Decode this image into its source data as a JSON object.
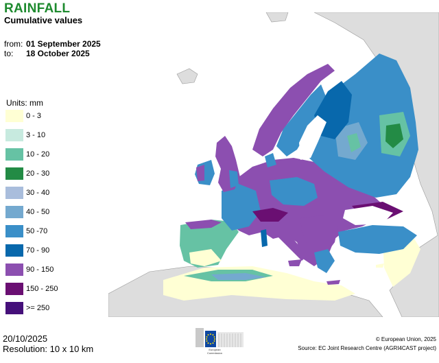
{
  "header": {
    "title": "RAINFALL",
    "subtitle": "Cumulative values"
  },
  "period": {
    "from_label": "from:",
    "from_value": "01 September 2025",
    "to_label": "to:",
    "to_value": "18 October 2025"
  },
  "legend": {
    "units": "Units: mm",
    "items": [
      {
        "label": "0 - 3",
        "color": "#ffffd4"
      },
      {
        "label": "3 - 10",
        "color": "#c7eadf"
      },
      {
        "label": "10 - 20",
        "color": "#66c2a4"
      },
      {
        "label": "20 - 30",
        "color": "#238b45"
      },
      {
        "label": "30 - 40",
        "color": "#a9bddc"
      },
      {
        "label": "40 - 50",
        "color": "#74a9cf"
      },
      {
        "label": "50 -70",
        "color": "#3a8fc8"
      },
      {
        "label": "70 - 90",
        "color": "#0868ac"
      },
      {
        "label": "90 - 150",
        "color": "#8c4fb0"
      },
      {
        "label": "150 - 250",
        "color": "#6a0f72"
      },
      {
        "label": ">= 250",
        "color": "#45107a"
      }
    ]
  },
  "footer": {
    "date": "20/10/2025",
    "resolution": "Resolution: 10 x 10 km",
    "copyright": "© European Union, 2025",
    "source": "Source: EC Joint Research Centre (AGRI4CAST project)",
    "logo_caption": "European Commission"
  },
  "colors": {
    "title": "#1d8a2e",
    "sea": "#ffffff",
    "outside_land": "#dddddd",
    "eu_flag": "#0e47a1",
    "eu_stars": "#ffdd00"
  }
}
